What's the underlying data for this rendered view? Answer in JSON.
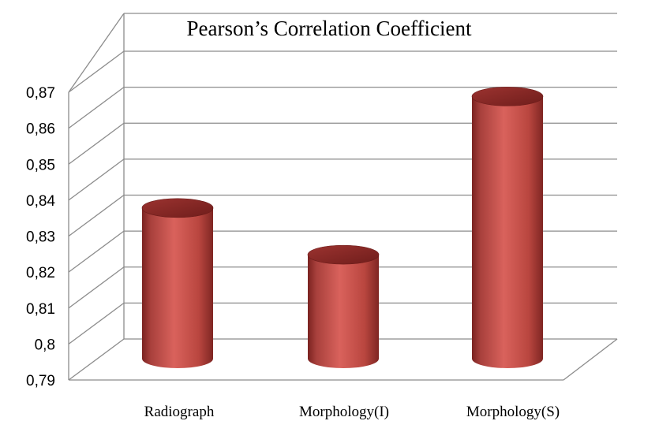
{
  "chart_data": {
    "type": "bar",
    "title": "Pearson’s Correlation Coefficient",
    "xlabel": "",
    "ylabel": "",
    "categories": [
      "Radiograph",
      "Morphology(I)",
      "Morphology(S)"
    ],
    "values": [
      0.833,
      0.82,
      0.864
    ],
    "ylim": [
      0.79,
      0.87
    ],
    "yticks": [
      "0,79",
      "0,8",
      "0,81",
      "0,82",
      "0,83",
      "0,84",
      "0,85",
      "0,86",
      "0,87"
    ],
    "grid": true,
    "style": "3d-cylinder",
    "colors": {
      "bar": "#c0504d",
      "bar_light": "#d9625c",
      "bar_dark": "#7a2220",
      "grid": "#8c8c8c"
    }
  }
}
